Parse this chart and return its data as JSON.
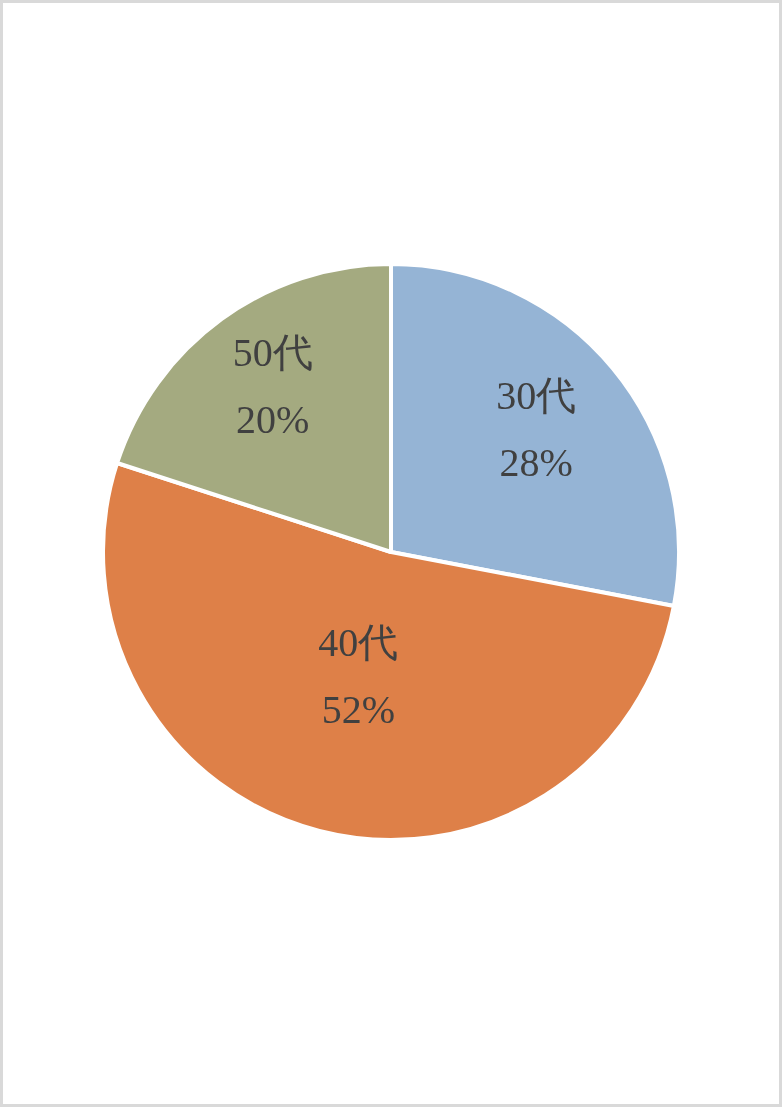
{
  "chart_data": {
    "type": "pie",
    "categories": [
      "30代",
      "40代",
      "50代"
    ],
    "values": [
      28,
      52,
      20
    ],
    "value_labels": [
      "28%",
      "52%",
      "20%"
    ],
    "colors": [
      "#95b4d5",
      "#de8048",
      "#a4aa80"
    ]
  }
}
